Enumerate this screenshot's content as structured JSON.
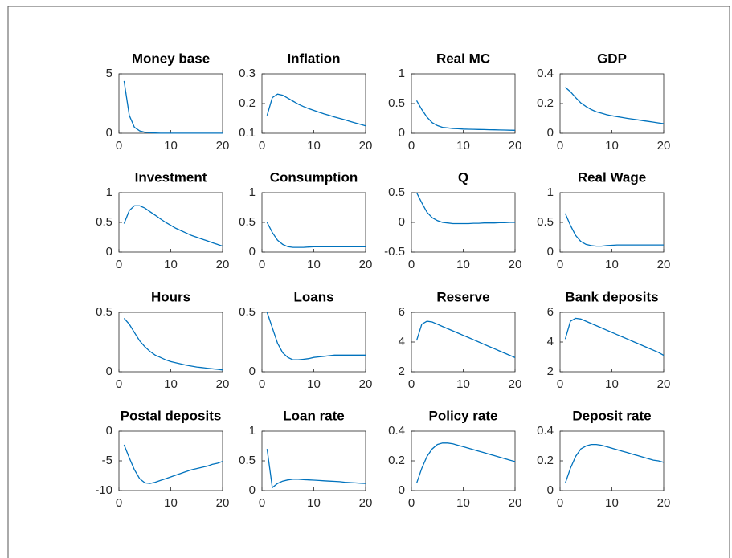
{
  "chart_data": [
    {
      "type": "line",
      "title": "Money base",
      "x": [
        1,
        2,
        3,
        4,
        5,
        6,
        7,
        8,
        9,
        10,
        11,
        12,
        13,
        14,
        15,
        16,
        17,
        18,
        19,
        20
      ],
      "values": [
        4.4,
        1.5,
        0.5,
        0.2,
        0.08,
        0.04,
        0.02,
        0.01,
        0.01,
        0.01,
        0.01,
        0.01,
        0.01,
        0.01,
        0.01,
        0.01,
        0.01,
        0.01,
        0.01,
        0.01
      ],
      "color": "#0072bd",
      "xlim": [
        0,
        20
      ],
      "xticks": [
        0,
        10,
        20
      ],
      "ylim": [
        0,
        5
      ],
      "yticks": [
        0,
        5
      ]
    },
    {
      "type": "line",
      "title": "Inflation",
      "x": [
        1,
        2,
        3,
        4,
        5,
        6,
        7,
        8,
        9,
        10,
        11,
        12,
        13,
        14,
        15,
        16,
        17,
        18,
        19,
        20
      ],
      "values": [
        0.16,
        0.22,
        0.232,
        0.228,
        0.218,
        0.208,
        0.198,
        0.19,
        0.183,
        0.177,
        0.171,
        0.165,
        0.16,
        0.155,
        0.15,
        0.145,
        0.14,
        0.135,
        0.13,
        0.125
      ],
      "color": "#0072bd",
      "xlim": [
        0,
        20
      ],
      "xticks": [
        0,
        10,
        20
      ],
      "ylim": [
        0.1,
        0.3
      ],
      "yticks": [
        0.1,
        0.2,
        0.3
      ]
    },
    {
      "type": "line",
      "title": "Real MC",
      "x": [
        1,
        2,
        3,
        4,
        5,
        6,
        7,
        8,
        9,
        10,
        11,
        12,
        13,
        14,
        15,
        16,
        17,
        18,
        19,
        20
      ],
      "values": [
        0.55,
        0.4,
        0.27,
        0.18,
        0.13,
        0.1,
        0.09,
        0.08,
        0.075,
        0.07,
        0.068,
        0.066,
        0.064,
        0.062,
        0.06,
        0.058,
        0.056,
        0.054,
        0.052,
        0.05
      ],
      "color": "#0072bd",
      "xlim": [
        0,
        20
      ],
      "xticks": [
        0,
        10,
        20
      ],
      "ylim": [
        0,
        1
      ],
      "yticks": [
        0,
        0.5,
        1
      ]
    },
    {
      "type": "line",
      "title": "GDP",
      "x": [
        1,
        2,
        3,
        4,
        5,
        6,
        7,
        8,
        9,
        10,
        11,
        12,
        13,
        14,
        15,
        16,
        17,
        18,
        19,
        20
      ],
      "values": [
        0.31,
        0.28,
        0.24,
        0.205,
        0.18,
        0.16,
        0.145,
        0.135,
        0.125,
        0.118,
        0.112,
        0.106,
        0.1,
        0.095,
        0.09,
        0.085,
        0.08,
        0.075,
        0.07,
        0.065
      ],
      "color": "#0072bd",
      "xlim": [
        0,
        20
      ],
      "xticks": [
        0,
        10,
        20
      ],
      "ylim": [
        0,
        0.4
      ],
      "yticks": [
        0,
        0.2,
        0.4
      ]
    },
    {
      "type": "line",
      "title": "Investment",
      "x": [
        1,
        2,
        3,
        4,
        5,
        6,
        7,
        8,
        9,
        10,
        11,
        12,
        13,
        14,
        15,
        16,
        17,
        18,
        19,
        20
      ],
      "values": [
        0.48,
        0.7,
        0.78,
        0.78,
        0.74,
        0.68,
        0.62,
        0.56,
        0.5,
        0.45,
        0.4,
        0.36,
        0.32,
        0.28,
        0.25,
        0.22,
        0.19,
        0.16,
        0.13,
        0.1
      ],
      "color": "#0072bd",
      "xlim": [
        0,
        20
      ],
      "xticks": [
        0,
        10,
        20
      ],
      "ylim": [
        0,
        1
      ],
      "yticks": [
        0,
        0.5,
        1
      ]
    },
    {
      "type": "line",
      "title": "Consumption",
      "x": [
        1,
        2,
        3,
        4,
        5,
        6,
        7,
        8,
        9,
        10,
        11,
        12,
        13,
        14,
        15,
        16,
        17,
        18,
        19,
        20
      ],
      "values": [
        0.5,
        0.33,
        0.2,
        0.13,
        0.09,
        0.08,
        0.08,
        0.08,
        0.085,
        0.09,
        0.09,
        0.09,
        0.09,
        0.09,
        0.09,
        0.09,
        0.09,
        0.09,
        0.09,
        0.09
      ],
      "color": "#0072bd",
      "xlim": [
        0,
        20
      ],
      "xticks": [
        0,
        10,
        20
      ],
      "ylim": [
        0,
        1
      ],
      "yticks": [
        0,
        0.5,
        1
      ]
    },
    {
      "type": "line",
      "title": "Q",
      "x": [
        1,
        2,
        3,
        4,
        5,
        6,
        7,
        8,
        9,
        10,
        11,
        12,
        13,
        14,
        15,
        16,
        17,
        18,
        19,
        20
      ],
      "values": [
        0.5,
        0.33,
        0.17,
        0.08,
        0.03,
        0,
        -0.01,
        -0.02,
        -0.02,
        -0.02,
        -0.02,
        -0.015,
        -0.015,
        -0.01,
        -0.01,
        -0.01,
        -0.005,
        -0.005,
        0,
        0
      ],
      "color": "#0072bd",
      "xlim": [
        0,
        20
      ],
      "xticks": [
        0,
        10,
        20
      ],
      "ylim": [
        -0.5,
        0.5
      ],
      "yticks": [
        -0.5,
        0,
        0.5
      ]
    },
    {
      "type": "line",
      "title": "Real Wage",
      "x": [
        1,
        2,
        3,
        4,
        5,
        6,
        7,
        8,
        9,
        10,
        11,
        12,
        13,
        14,
        15,
        16,
        17,
        18,
        19,
        20
      ],
      "values": [
        0.65,
        0.45,
        0.28,
        0.18,
        0.13,
        0.11,
        0.1,
        0.1,
        0.11,
        0.115,
        0.12,
        0.12,
        0.12,
        0.12,
        0.12,
        0.12,
        0.12,
        0.12,
        0.12,
        0.12
      ],
      "color": "#0072bd",
      "xlim": [
        0,
        20
      ],
      "xticks": [
        0,
        10,
        20
      ],
      "ylim": [
        0,
        1
      ],
      "yticks": [
        0,
        0.5,
        1
      ]
    },
    {
      "type": "line",
      "title": "Hours",
      "x": [
        1,
        2,
        3,
        4,
        5,
        6,
        7,
        8,
        9,
        10,
        11,
        12,
        13,
        14,
        15,
        16,
        17,
        18,
        19,
        20
      ],
      "values": [
        0.45,
        0.4,
        0.33,
        0.26,
        0.21,
        0.17,
        0.14,
        0.12,
        0.1,
        0.085,
        0.075,
        0.065,
        0.055,
        0.047,
        0.04,
        0.035,
        0.03,
        0.025,
        0.02,
        0.015
      ],
      "color": "#0072bd",
      "xlim": [
        0,
        20
      ],
      "xticks": [
        0,
        10,
        20
      ],
      "ylim": [
        0,
        0.5
      ],
      "yticks": [
        0,
        0.5
      ]
    },
    {
      "type": "line",
      "title": "Loans",
      "x": [
        1,
        2,
        3,
        4,
        5,
        6,
        7,
        8,
        9,
        10,
        11,
        12,
        13,
        14,
        15,
        16,
        17,
        18,
        19,
        20
      ],
      "values": [
        0.5,
        0.37,
        0.24,
        0.16,
        0.12,
        0.1,
        0.1,
        0.105,
        0.11,
        0.12,
        0.125,
        0.13,
        0.135,
        0.14,
        0.14,
        0.14,
        0.14,
        0.14,
        0.14,
        0.14
      ],
      "color": "#0072bd",
      "xlim": [
        0,
        20
      ],
      "xticks": [
        0,
        10,
        20
      ],
      "ylim": [
        0,
        0.5
      ],
      "yticks": [
        0,
        0.5
      ]
    },
    {
      "type": "line",
      "title": "Reserve",
      "x": [
        1,
        2,
        3,
        4,
        5,
        6,
        7,
        8,
        9,
        10,
        11,
        12,
        13,
        14,
        15,
        16,
        17,
        18,
        19,
        20
      ],
      "values": [
        4.1,
        5.2,
        5.4,
        5.35,
        5.2,
        5.05,
        4.9,
        4.75,
        4.6,
        4.45,
        4.3,
        4.15,
        4.0,
        3.85,
        3.7,
        3.55,
        3.4,
        3.25,
        3.1,
        2.95
      ],
      "color": "#0072bd",
      "xlim": [
        0,
        20
      ],
      "xticks": [
        0,
        10,
        20
      ],
      "ylim": [
        2,
        6
      ],
      "yticks": [
        2,
        4,
        6
      ]
    },
    {
      "type": "line",
      "title": "Bank deposits",
      "x": [
        1,
        2,
        3,
        4,
        5,
        6,
        7,
        8,
        9,
        10,
        11,
        12,
        13,
        14,
        15,
        16,
        17,
        18,
        19,
        20
      ],
      "values": [
        4.2,
        5.4,
        5.6,
        5.55,
        5.4,
        5.25,
        5.1,
        4.95,
        4.8,
        4.65,
        4.5,
        4.35,
        4.2,
        4.05,
        3.9,
        3.75,
        3.6,
        3.45,
        3.3,
        3.1
      ],
      "color": "#0072bd",
      "xlim": [
        0,
        20
      ],
      "xticks": [
        0,
        10,
        20
      ],
      "ylim": [
        2,
        6
      ],
      "yticks": [
        2,
        4,
        6
      ]
    },
    {
      "type": "line",
      "title": "Postal deposits",
      "x": [
        1,
        2,
        3,
        4,
        5,
        6,
        7,
        8,
        9,
        10,
        11,
        12,
        13,
        14,
        15,
        16,
        17,
        18,
        19,
        20
      ],
      "values": [
        -2.3,
        -4.5,
        -6.5,
        -8,
        -8.7,
        -8.8,
        -8.6,
        -8.3,
        -8,
        -7.7,
        -7.4,
        -7.1,
        -6.8,
        -6.5,
        -6.3,
        -6.1,
        -5.9,
        -5.6,
        -5.4,
        -5.1
      ],
      "color": "#0072bd",
      "xlim": [
        0,
        20
      ],
      "xticks": [
        0,
        10,
        20
      ],
      "ylim": [
        -10,
        0
      ],
      "yticks": [
        -10,
        -5,
        0
      ]
    },
    {
      "type": "line",
      "title": "Loan rate",
      "x": [
        1,
        2,
        3,
        4,
        5,
        6,
        7,
        8,
        9,
        10,
        11,
        12,
        13,
        14,
        15,
        16,
        17,
        18,
        19,
        20
      ],
      "values": [
        0.7,
        0.05,
        0.12,
        0.16,
        0.18,
        0.19,
        0.19,
        0.185,
        0.18,
        0.175,
        0.17,
        0.165,
        0.16,
        0.155,
        0.15,
        0.14,
        0.135,
        0.13,
        0.125,
        0.12
      ],
      "color": "#0072bd",
      "xlim": [
        0,
        20
      ],
      "xticks": [
        0,
        10,
        20
      ],
      "ylim": [
        0,
        1
      ],
      "yticks": [
        0,
        0.5,
        1
      ]
    },
    {
      "type": "line",
      "title": "Policy rate",
      "x": [
        1,
        2,
        3,
        4,
        5,
        6,
        7,
        8,
        9,
        10,
        11,
        12,
        13,
        14,
        15,
        16,
        17,
        18,
        19,
        20
      ],
      "values": [
        0.05,
        0.15,
        0.23,
        0.28,
        0.31,
        0.32,
        0.32,
        0.315,
        0.305,
        0.295,
        0.285,
        0.275,
        0.265,
        0.255,
        0.245,
        0.235,
        0.225,
        0.215,
        0.205,
        0.195
      ],
      "color": "#0072bd",
      "xlim": [
        0,
        20
      ],
      "xticks": [
        0,
        10,
        20
      ],
      "ylim": [
        0,
        0.4
      ],
      "yticks": [
        0,
        0.2,
        0.4
      ]
    },
    {
      "type": "line",
      "title": "Deposit rate",
      "x": [
        1,
        2,
        3,
        4,
        5,
        6,
        7,
        8,
        9,
        10,
        11,
        12,
        13,
        14,
        15,
        16,
        17,
        18,
        19,
        20
      ],
      "values": [
        0.05,
        0.15,
        0.23,
        0.28,
        0.3,
        0.31,
        0.31,
        0.305,
        0.295,
        0.285,
        0.275,
        0.265,
        0.255,
        0.245,
        0.235,
        0.225,
        0.215,
        0.205,
        0.2,
        0.19
      ],
      "color": "#0072bd",
      "xlim": [
        0,
        20
      ],
      "xticks": [
        0,
        10,
        20
      ],
      "ylim": [
        0,
        0.4
      ],
      "yticks": [
        0,
        0.2,
        0.4
      ]
    }
  ]
}
